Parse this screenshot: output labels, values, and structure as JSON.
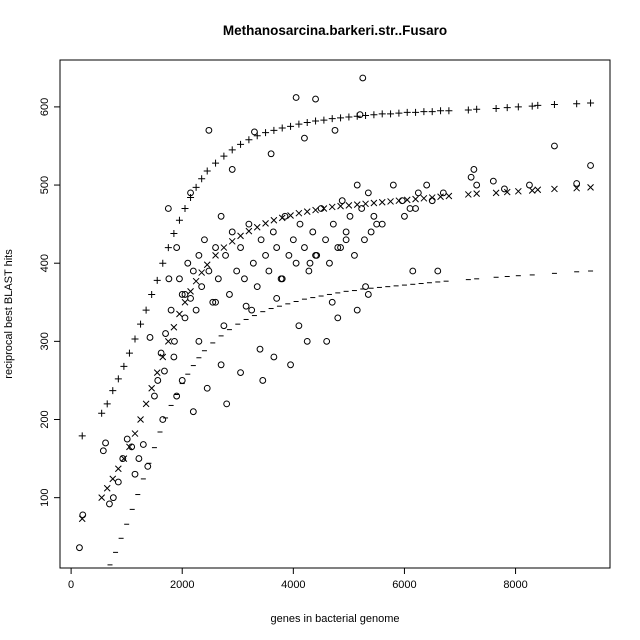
{
  "chart_data": {
    "type": "scatter",
    "title": "Methanosarcina.barkeri.str..Fusaro",
    "xlabel": "genes in bacterial genome",
    "ylabel": "reciprocal best BLAST hits",
    "xlim": [
      -200,
      9700
    ],
    "ylim": [
      10,
      660
    ],
    "x_ticks": [
      0,
      2000,
      4000,
      6000,
      8000
    ],
    "y_ticks": [
      100,
      200,
      300,
      400,
      500,
      600
    ],
    "grid": false,
    "legend": "none",
    "series": [
      {
        "marker": "plus",
        "x": [
          200,
          550,
          650,
          750,
          850,
          950,
          1050,
          1150,
          1250,
          1350,
          1450,
          1550,
          1650,
          1750,
          1850,
          1950,
          2050,
          2150,
          2250,
          2350,
          2450,
          2600,
          2750,
          2900,
          3050,
          3200,
          3350,
          3500,
          3650,
          3800,
          3950,
          4100,
          4250,
          4400,
          4550,
          4700,
          4850,
          5000,
          5150,
          5300,
          5450,
          5600,
          5750,
          5900,
          6050,
          6200,
          6350,
          6500,
          6650,
          6800,
          7150,
          7300,
          7650,
          7850,
          8050,
          8300,
          8400,
          8700,
          9100,
          9350
        ],
        "y": [
          179,
          208,
          220,
          237,
          252,
          268,
          285,
          303,
          322,
          340,
          360,
          378,
          400,
          420,
          438,
          455,
          470,
          484,
          497,
          508,
          518,
          528,
          537,
          545,
          552,
          558,
          563,
          567,
          570,
          573,
          575,
          578,
          580,
          582,
          583,
          585,
          586,
          587,
          588,
          589,
          590,
          591,
          591,
          592,
          593,
          593,
          594,
          594,
          595,
          595,
          596,
          597,
          598,
          599,
          600,
          601,
          602,
          603,
          604,
          605
        ]
      },
      {
        "marker": "x",
        "x": [
          200,
          550,
          650,
          750,
          850,
          950,
          1050,
          1150,
          1250,
          1350,
          1450,
          1550,
          1650,
          1750,
          1850,
          1950,
          2050,
          2150,
          2250,
          2350,
          2450,
          2600,
          2750,
          2900,
          3050,
          3200,
          3350,
          3500,
          3650,
          3800,
          3950,
          4100,
          4250,
          4400,
          4550,
          4700,
          4850,
          5000,
          5150,
          5300,
          5450,
          5600,
          5750,
          5900,
          6050,
          6200,
          6350,
          6500,
          6650,
          6800,
          7150,
          7300,
          7650,
          7850,
          8050,
          8300,
          8400,
          8700,
          9100,
          9350
        ],
        "y": [
          73,
          100,
          112,
          124,
          137,
          150,
          165,
          182,
          200,
          220,
          240,
          260,
          280,
          300,
          318,
          335,
          350,
          364,
          377,
          388,
          398,
          410,
          420,
          428,
          435,
          441,
          446,
          451,
          455,
          458,
          461,
          464,
          466,
          468,
          470,
          472,
          473,
          474,
          475,
          476,
          477,
          478,
          479,
          480,
          481,
          482,
          483,
          484,
          485,
          486,
          488,
          489,
          490,
          491,
          492,
          493,
          494,
          495,
          496,
          497
        ]
      },
      {
        "marker": "dash",
        "x": [
          700,
          800,
          900,
          1000,
          1100,
          1200,
          1300,
          1400,
          1500,
          1600,
          1700,
          1800,
          1900,
          2000,
          2100,
          2200,
          2300,
          2400,
          2550,
          2700,
          2850,
          3000,
          3150,
          3300,
          3450,
          3600,
          3750,
          3900,
          4050,
          4200,
          4350,
          4500,
          4650,
          4800,
          4950,
          5100,
          5250,
          5400,
          5550,
          5700,
          5850,
          6000,
          6150,
          6300,
          6450,
          6600,
          6750,
          7150,
          7300,
          7650,
          7850,
          8050,
          8300,
          8700,
          9100,
          9350
        ],
        "y": [
          14,
          30,
          48,
          66,
          85,
          104,
          124,
          144,
          164,
          184,
          202,
          218,
          232,
          246,
          258,
          269,
          279,
          288,
          298,
          307,
          315,
          322,
          328,
          333,
          338,
          342,
          345,
          348,
          351,
          354,
          356,
          358,
          360,
          362,
          364,
          365,
          367,
          368,
          369,
          370,
          371,
          372,
          373,
          374,
          375,
          376,
          377,
          379,
          380,
          382,
          383,
          384,
          385,
          387,
          389,
          390
        ]
      },
      {
        "marker": "circle",
        "x": [
          150,
          210,
          580,
          620,
          690,
          760,
          850,
          930,
          1010,
          1090,
          1150,
          1220,
          1300,
          1380,
          1420,
          1500,
          1560,
          1620,
          1680,
          1700,
          1760,
          1800,
          1860,
          1900,
          1950,
          2000,
          2050,
          2100,
          2150,
          2200,
          2250,
          2300,
          2350,
          2400,
          2480,
          2550,
          2600,
          2650,
          2700,
          2780,
          2850,
          2900,
          2980,
          3050,
          3120,
          3200,
          3280,
          3350,
          3420,
          3500,
          3560,
          3640,
          3700,
          3780,
          3850,
          3920,
          4000,
          4050,
          4120,
          4200,
          4280,
          4350,
          4420,
          4500,
          4580,
          4650,
          4720,
          4800,
          4880,
          4950,
          5020,
          5100,
          5150,
          5230,
          5280,
          5350,
          5450,
          5600,
          5800,
          5960,
          6100,
          6250,
          6400,
          6500,
          6700,
          7200,
          7300,
          7600,
          7800,
          8250,
          8700,
          9100,
          9350,
          2480,
          4050,
          4400,
          5250,
          3300,
          1750,
          2150,
          2900,
          3600,
          4200,
          4750,
          5200,
          2050,
          2600,
          3150,
          3700,
          4300,
          4850,
          5400,
          6000,
          1850,
          2300,
          2750,
          3250,
          3800,
          4400,
          4950,
          5500,
          6200,
          2000,
          2700,
          3400,
          4100,
          4700,
          5300,
          6150,
          1900,
          2450,
          3050,
          3650,
          4250,
          4800,
          5350,
          7250,
          1650,
          2200,
          2800,
          3450,
          3950,
          4600,
          5150,
          6600
        ],
        "y": [
          36,
          78,
          160,
          170,
          92,
          100,
          120,
          150,
          175,
          165,
          130,
          150,
          168,
          140,
          305,
          230,
          250,
          285,
          262,
          310,
          380,
          340,
          300,
          420,
          380,
          360,
          330,
          400,
          355,
          390,
          340,
          410,
          370,
          430,
          390,
          350,
          420,
          380,
          460,
          410,
          360,
          440,
          390,
          420,
          380,
          450,
          400,
          370,
          430,
          410,
          390,
          440,
          420,
          380,
          460,
          410,
          430,
          400,
          450,
          420,
          390,
          440,
          410,
          470,
          430,
          400,
          450,
          420,
          480,
          440,
          460,
          410,
          500,
          470,
          430,
          490,
          460,
          450,
          500,
          480,
          470,
          490,
          500,
          480,
          490,
          510,
          500,
          505,
          495,
          500,
          550,
          502,
          525,
          570,
          612,
          610,
          637,
          568,
          470,
          490,
          520,
          540,
          560,
          570,
          590,
          360,
          350,
          345,
          355,
          400,
          420,
          440,
          460,
          280,
          300,
          320,
          340,
          380,
          410,
          430,
          450,
          470,
          250,
          270,
          290,
          320,
          350,
          370,
          390,
          230,
          240,
          260,
          280,
          300,
          330,
          360,
          520,
          200,
          210,
          220,
          250,
          270,
          300,
          340,
          390
        ]
      }
    ]
  }
}
